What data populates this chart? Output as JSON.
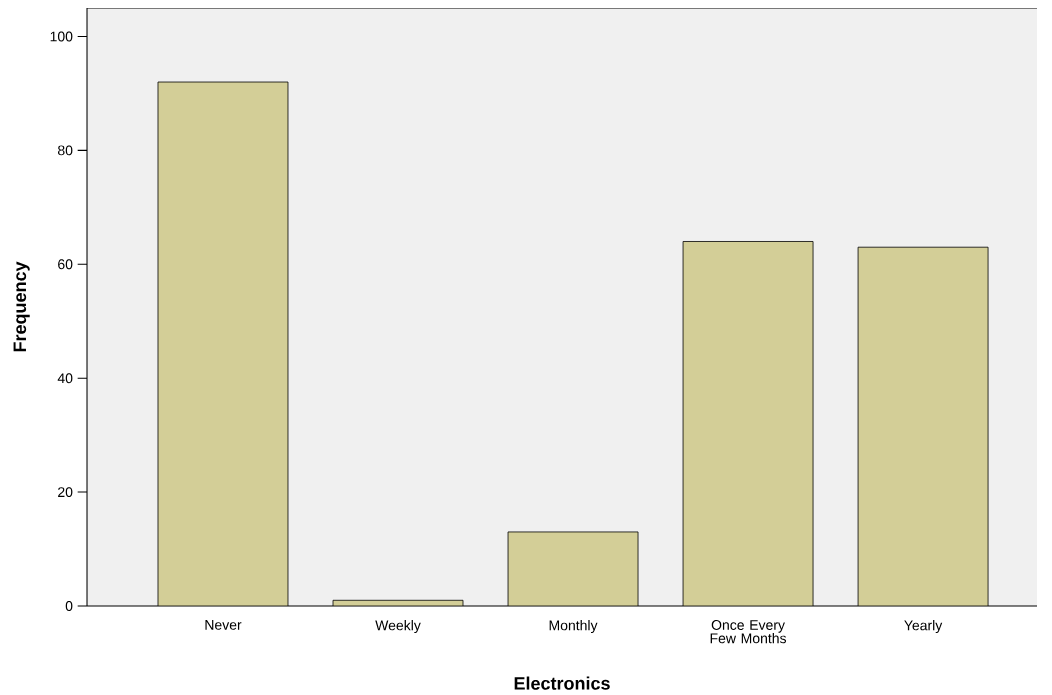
{
  "chart_data": {
    "type": "bar",
    "xlabel": "Electronics",
    "ylabel": "Frequency",
    "categories": [
      "Never",
      "Weekly",
      "Monthly",
      "Once Every Few Months",
      "Yearly"
    ],
    "values": [
      92,
      1,
      13,
      64,
      63
    ],
    "color": "#d3ce97",
    "ylim": [
      0,
      105
    ],
    "yticks": [
      0,
      20,
      40,
      60,
      80,
      100
    ]
  }
}
